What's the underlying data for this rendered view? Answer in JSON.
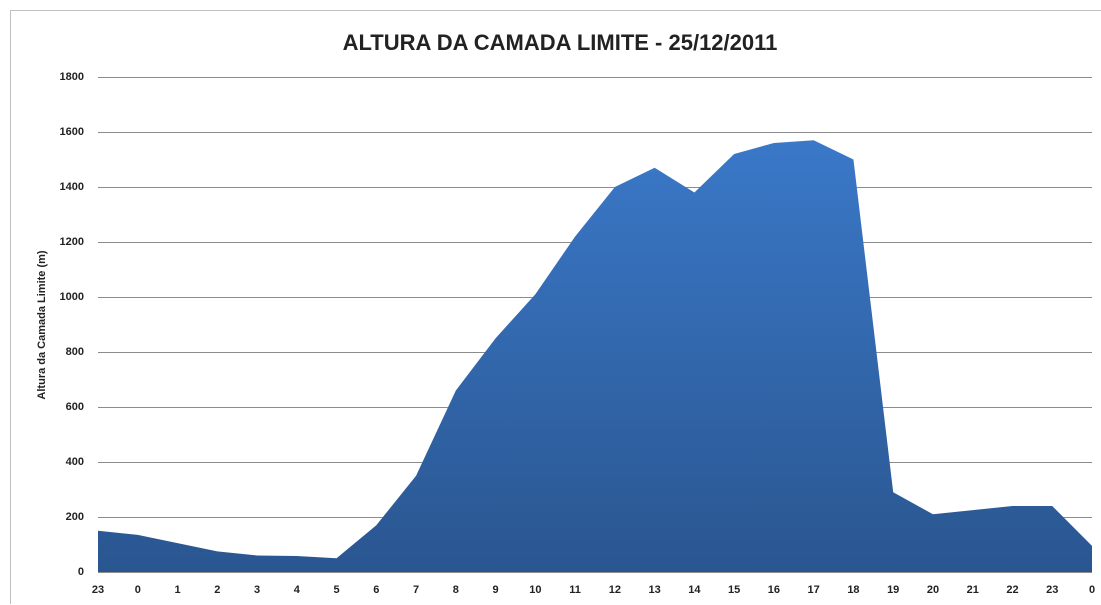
{
  "chart_data": {
    "type": "area",
    "title": "ALTURA DA CAMADA LIMITE - 25/12/2011",
    "y_label": "Altura da Camada  Limite (m)",
    "categories": [
      "23",
      "0",
      "1",
      "2",
      "3",
      "4",
      "5",
      "6",
      "7",
      "8",
      "9",
      "10",
      "11",
      "12",
      "13",
      "14",
      "15",
      "16",
      "17",
      "18",
      "19",
      "20",
      "21",
      "22",
      "23",
      "0"
    ],
    "values": [
      150,
      135,
      105,
      75,
      60,
      58,
      50,
      170,
      350,
      660,
      850,
      1010,
      1220,
      1400,
      1470,
      1380,
      1520,
      1560,
      1570,
      1500,
      290,
      210,
      225,
      240,
      240,
      95
    ],
    "color": "#3a78c8",
    "ylim": [
      0,
      1800
    ],
    "yticks": [
      0,
      200,
      400,
      600,
      800,
      1000,
      1200,
      1400,
      1600,
      1800
    ],
    "grid": true
  }
}
